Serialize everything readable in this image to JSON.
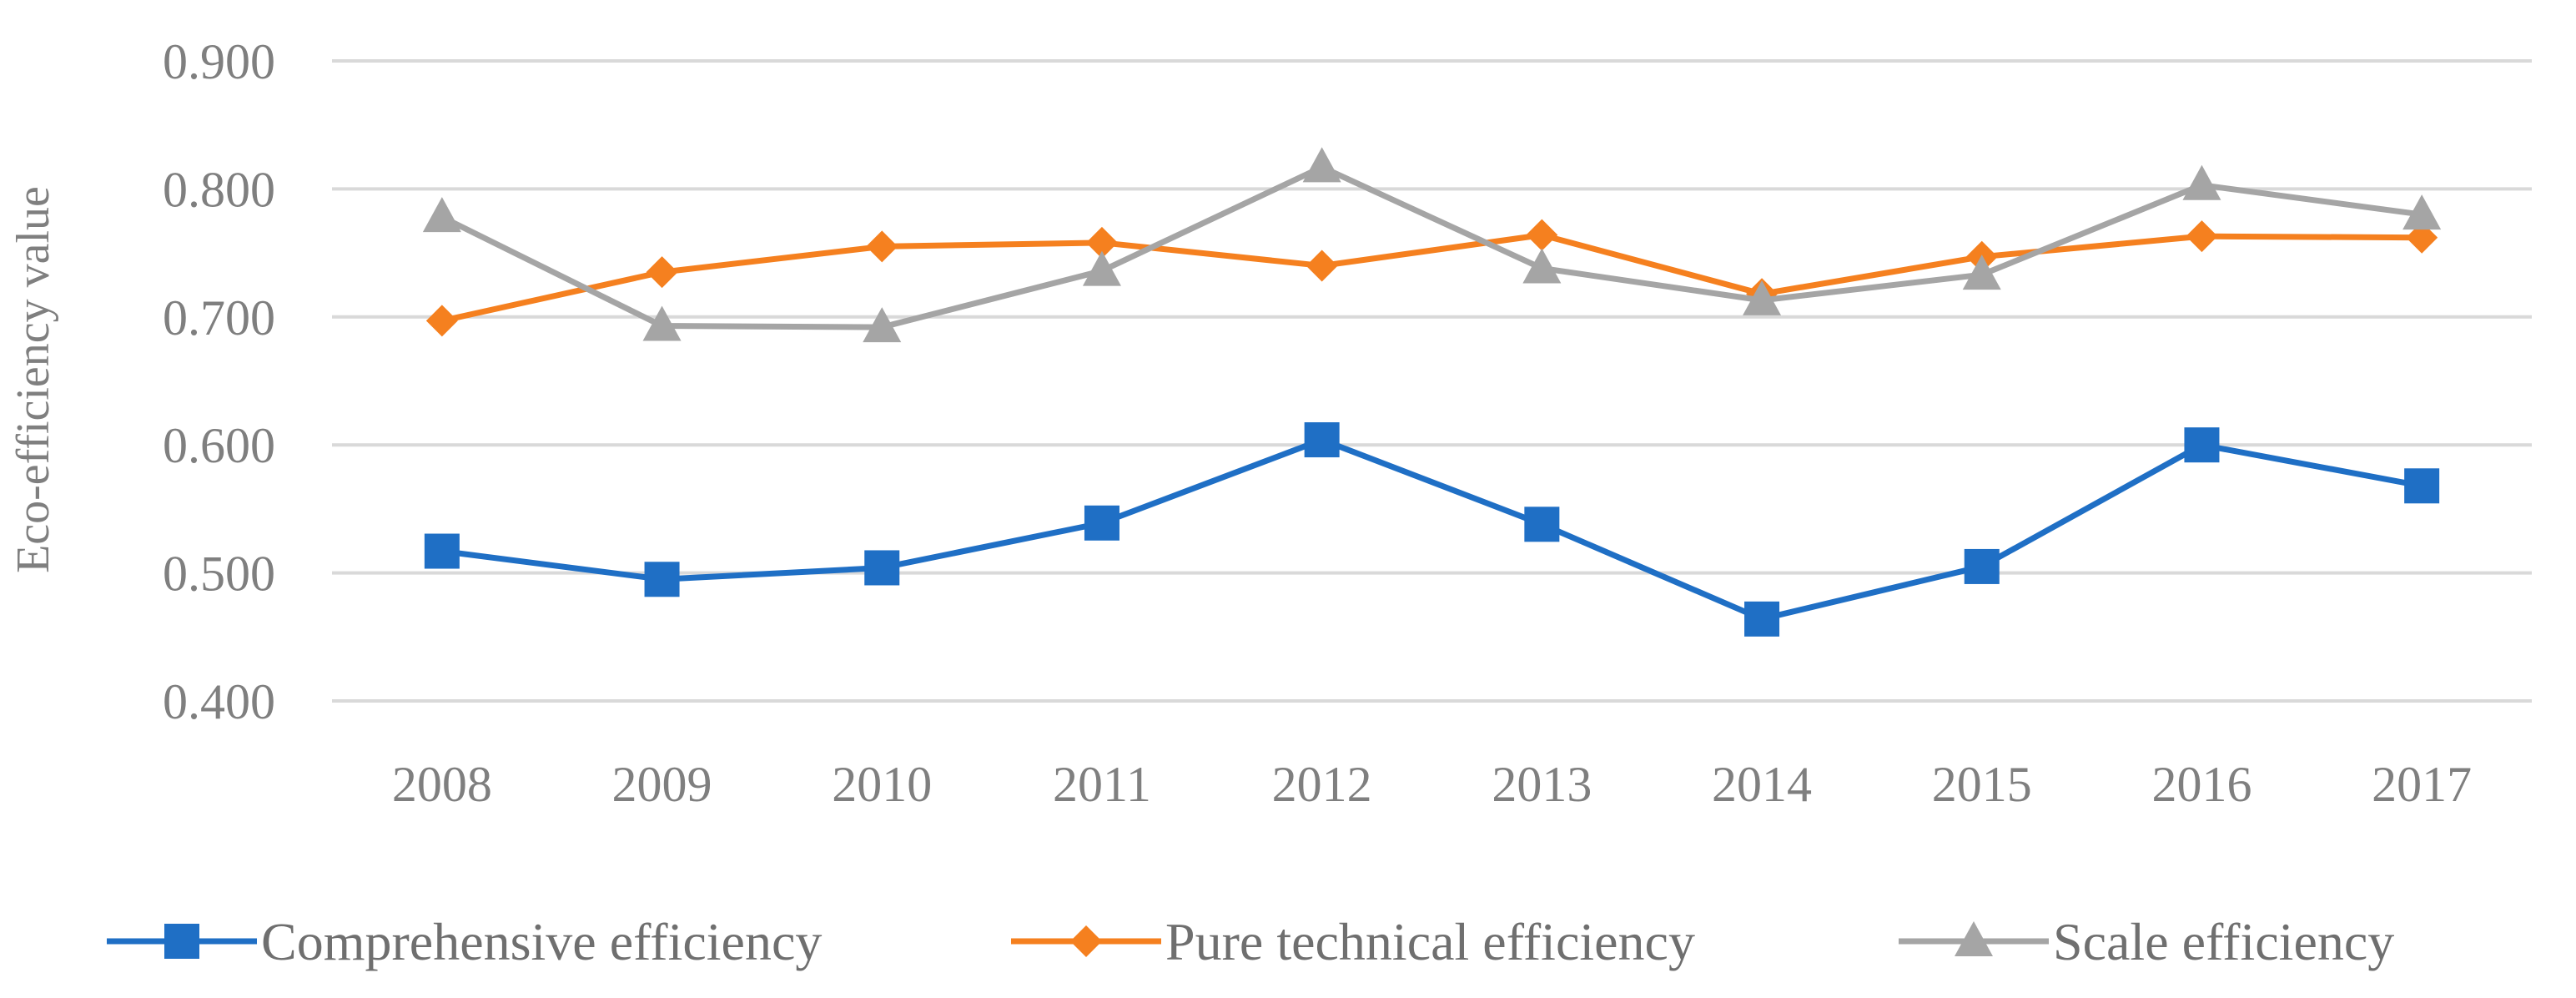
{
  "chart_data": {
    "type": "line",
    "title": "",
    "xlabel": "",
    "ylabel": "Eco-efficiency value",
    "ylim": [
      0.4,
      0.9
    ],
    "yticks": [
      "0.900",
      "0.800",
      "0.700",
      "0.600",
      "0.500",
      "0.400"
    ],
    "ytick_values": [
      0.9,
      0.8,
      0.7,
      0.6,
      0.5,
      0.4
    ],
    "grid": true,
    "legend_position": "bottom",
    "categories": [
      "2008",
      "2009",
      "2010",
      "2011",
      "2012",
      "2013",
      "2014",
      "2015",
      "2016",
      "2017"
    ],
    "series": [
      {
        "name": "Comprehensive efficiency",
        "color": "#1f6fc5",
        "marker": "square",
        "values": [
          0.517,
          0.495,
          0.504,
          0.539,
          0.604,
          0.538,
          0.464,
          0.505,
          0.6,
          0.568
        ]
      },
      {
        "name": "Pure technical efficiency",
        "color": "#f5801f",
        "marker": "diamond",
        "values": [
          0.697,
          0.735,
          0.755,
          0.758,
          0.74,
          0.764,
          0.718,
          0.747,
          0.763,
          0.762
        ]
      },
      {
        "name": "Scale efficiency",
        "color": "#a5a5a5",
        "marker": "triangle",
        "values": [
          0.778,
          0.693,
          0.692,
          0.736,
          0.817,
          0.738,
          0.713,
          0.733,
          0.803,
          0.78
        ]
      }
    ]
  }
}
